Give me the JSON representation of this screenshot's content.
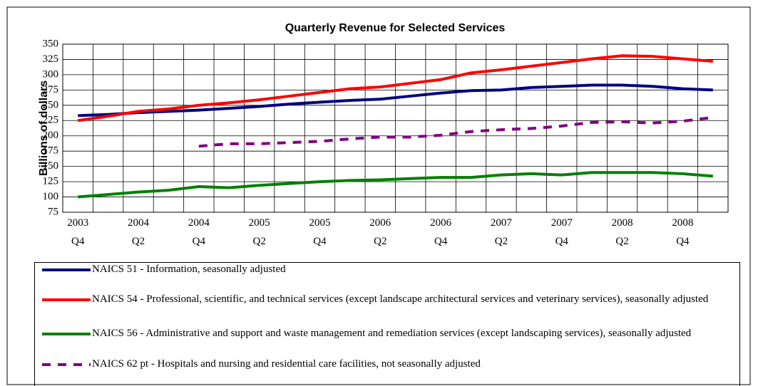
{
  "chart_data": {
    "type": "line",
    "title": "Quarterly Revenue for Selected Services",
    "y_label": "Billions of dollars",
    "categories": [
      "2003 Q4",
      null,
      "2004 Q2",
      null,
      "2004 Q4",
      null,
      "2005 Q2",
      null,
      "2005 Q4",
      null,
      "2006 Q2",
      null,
      "2006 Q4",
      null,
      "2007 Q2",
      null,
      "2007 Q4",
      null,
      "2008 Q2",
      null,
      "2008 Q4",
      null
    ],
    "series": [
      {
        "name": "NAICS 51 - Information, seasonally adjusted",
        "color": "#000080",
        "dash": false,
        "values": [
          233,
          235,
          238,
          240,
          242,
          245,
          248,
          252,
          255,
          258,
          260,
          265,
          270,
          274,
          275,
          279,
          281,
          283,
          283,
          281,
          277,
          275
        ]
      },
      {
        "name": "NAICS 54 - Professional, scientific, and technical services (except landscape architectural services and veterinary services), seasonally adjusted",
        "color": "#ff0000",
        "dash": false,
        "values": [
          225,
          232,
          240,
          244,
          250,
          254,
          259,
          265,
          271,
          277,
          280,
          286,
          292,
          303,
          308,
          314,
          320,
          326,
          331,
          330,
          326,
          322
        ]
      },
      {
        "name": "NAICS 56 - Administrative and support and waste management and remediation services (except landscaping services), seasonally adjusted",
        "color": "#008000",
        "dash": false,
        "values": [
          100,
          104,
          108,
          111,
          117,
          115,
          119,
          122,
          125,
          127,
          128,
          130,
          132,
          132,
          136,
          138,
          136,
          140,
          140,
          140,
          138,
          134
        ]
      },
      {
        "name": "NAICS 62 pt - Hospitals and nursing and residential care facilities, not seasonally adjusted",
        "color": "#800080",
        "dash": true,
        "values": [
          null,
          null,
          null,
          null,
          183,
          187,
          187,
          189,
          191,
          195,
          198,
          198,
          201,
          207,
          210,
          212,
          216,
          222,
          223,
          221,
          224,
          230
        ]
      }
    ],
    "ylim": [
      75,
      350
    ],
    "yticks": [
      75,
      100,
      125,
      150,
      175,
      200,
      225,
      250,
      275,
      300,
      325,
      350
    ],
    "grid": true,
    "legend": "bottom"
  }
}
